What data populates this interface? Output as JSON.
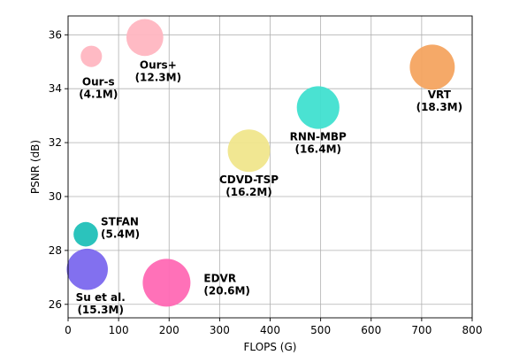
{
  "chart_data": {
    "type": "scatter",
    "xlabel": "FLOPS (G)",
    "ylabel": "PSNR (dB)",
    "xlim": [
      0,
      800
    ],
    "ylim": [
      25.5,
      36.7
    ],
    "xticks": [
      0,
      100,
      200,
      300,
      400,
      500,
      600,
      700,
      800
    ],
    "yticks": [
      26,
      28,
      30,
      32,
      34,
      36
    ],
    "grid": true,
    "points": [
      {
        "label": "Our-s",
        "params": "(4.1M)",
        "x": 46,
        "y": 35.2,
        "color": "#ffb6c1"
      },
      {
        "label": "Ours+",
        "params": "(12.3M)",
        "x": 152,
        "y": 35.9,
        "color": "#ffb6c1"
      },
      {
        "label": "VRT",
        "params": "(18.3M)",
        "x": 721,
        "y": 34.8,
        "color": "#f4a460"
      },
      {
        "label": "RNN-MBP",
        "params": "(16.4M)",
        "x": 495,
        "y": 33.3,
        "color": "#40e0d0"
      },
      {
        "label": "CDVD-TSP",
        "params": "(16.2M)",
        "x": 358,
        "y": 31.7,
        "color": "#f0e68c"
      },
      {
        "label": "STFAN",
        "params": "(5.4M)",
        "x": 35,
        "y": 28.6,
        "color": "#20c0b8"
      },
      {
        "label": "Su et al.",
        "params": "(15.3M)",
        "x": 38,
        "y": 27.3,
        "color": "#7b68ee"
      },
      {
        "label": "EDVR",
        "params": "(20.6M)",
        "x": 195,
        "y": 26.8,
        "color": "#ff69b4"
      }
    ]
  }
}
